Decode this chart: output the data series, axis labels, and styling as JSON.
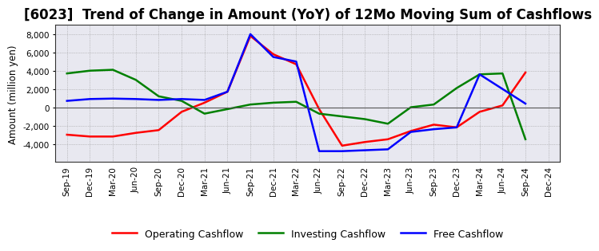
{
  "title": "[6023]  Trend of Change in Amount (YoY) of 12Mo Moving Sum of Cashflows",
  "ylabel": "Amount (million yen)",
  "x_labels": [
    "Sep-19",
    "Dec-19",
    "Mar-20",
    "Jun-20",
    "Sep-20",
    "Dec-20",
    "Mar-21",
    "Jun-21",
    "Sep-21",
    "Dec-21",
    "Mar-22",
    "Jun-22",
    "Sep-22",
    "Dec-22",
    "Mar-23",
    "Jun-23",
    "Sep-23",
    "Dec-23",
    "Mar-24",
    "Jun-24",
    "Sep-24",
    "Dec-24"
  ],
  "operating_cashflow": [
    -3000,
    -3200,
    -3200,
    -2800,
    -2500,
    -500,
    500,
    1700,
    7800,
    5800,
    4700,
    -200,
    -4200,
    -3800,
    -3500,
    -2600,
    -1900,
    -2200,
    -500,
    200,
    3800,
    null
  ],
  "investing_cashflow": [
    3700,
    4000,
    4100,
    3000,
    1200,
    700,
    -700,
    -200,
    300,
    500,
    600,
    -700,
    -1000,
    -1300,
    -1800,
    0,
    300,
    2100,
    3600,
    3700,
    -3500,
    null
  ],
  "free_cashflow": [
    700,
    900,
    950,
    900,
    800,
    900,
    800,
    1700,
    8000,
    5500,
    5000,
    -4800,
    -4800,
    -4700,
    -4600,
    -2700,
    -2400,
    -2200,
    3600,
    2000,
    400,
    null
  ],
  "operating_color": "#ff0000",
  "investing_color": "#008000",
  "free_color": "#0000ff",
  "ylim": [
    -6000,
    9000
  ],
  "yticks": [
    -4000,
    -2000,
    0,
    2000,
    4000,
    6000,
    8000
  ],
  "background_color": "#ffffff",
  "plot_bg_color": "#e8e8f0",
  "grid_color": "#999999",
  "title_fontsize": 12,
  "linewidth": 1.8,
  "tick_fontsize": 7.5
}
